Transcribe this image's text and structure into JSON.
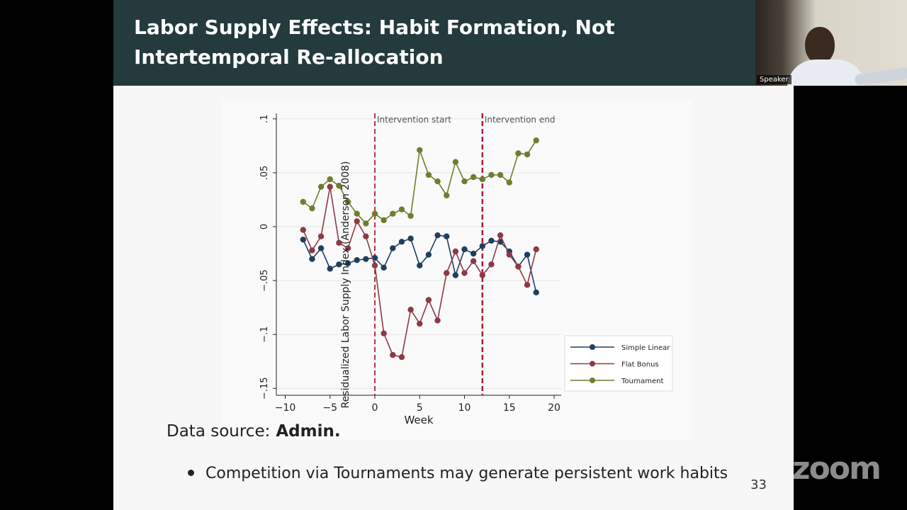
{
  "slide": {
    "title": "Labor Supply Effects: Habit Formation, Not Intertemporal Re-allocation",
    "data_source_label": "Data source:",
    "data_source_value": "Admin.",
    "bullet": "Competition via Tournaments may generate persistent work habits",
    "page_number": "33"
  },
  "video": {
    "speaker_label": "Speaker",
    "watermark": "zoom"
  },
  "chart_data": {
    "type": "line",
    "title": "",
    "xlabel": "Week",
    "ylabel": "Residualized Labor Supply Index (Anderson 2008)",
    "xlim": [
      -11,
      21
    ],
    "ylim": [
      -0.16,
      0.105
    ],
    "xticks": [
      -10,
      -5,
      0,
      5,
      10,
      15,
      20
    ],
    "xtick_labels": [
      "−10",
      "−5",
      "0",
      "5",
      "10",
      "15",
      "20"
    ],
    "yticks": [
      -0.15,
      -0.1,
      -0.05,
      0,
      0.05,
      0.1
    ],
    "ytick_labels": [
      "−.15",
      "−.1",
      "−.05",
      "0",
      ".05",
      ".1"
    ],
    "grid": true,
    "legend_position": "right",
    "annotations": [
      {
        "x": 0,
        "label": "Intervention start"
      },
      {
        "x": 12,
        "label": "Intervention end"
      }
    ],
    "x": [
      -8,
      -7,
      -6,
      -5,
      -4,
      -3,
      -2,
      -1,
      0,
      1,
      2,
      3,
      4,
      5,
      6,
      7,
      8,
      9,
      10,
      11,
      12,
      13,
      14,
      15,
      16,
      17,
      18
    ],
    "series": [
      {
        "name": "Simple Linear",
        "color": "#1f3f5e",
        "values": [
          -0.012,
          -0.03,
          -0.02,
          -0.039,
          -0.035,
          -0.034,
          -0.031,
          -0.03,
          -0.029,
          -0.038,
          -0.02,
          -0.014,
          -0.011,
          -0.036,
          -0.026,
          -0.008,
          -0.009,
          -0.045,
          -0.021,
          -0.025,
          -0.018,
          -0.013,
          -0.014,
          -0.023,
          -0.037,
          -0.026,
          -0.061
        ]
      },
      {
        "name": "Flat Bonus",
        "color": "#8c3a45",
        "values": [
          -0.003,
          -0.022,
          -0.009,
          0.037,
          -0.015,
          -0.02,
          0.005,
          -0.009,
          -0.036,
          -0.099,
          -0.119,
          -0.121,
          -0.077,
          -0.09,
          -0.068,
          -0.087,
          -0.043,
          -0.023,
          -0.043,
          -0.032,
          -0.045,
          -0.035,
          -0.008,
          -0.026,
          -0.037,
          -0.054,
          -0.021
        ]
      },
      {
        "name": "Tournament",
        "color": "#6b7f2f",
        "values": [
          0.023,
          0.017,
          0.037,
          0.044,
          0.038,
          0.023,
          0.012,
          0.003,
          0.012,
          0.006,
          0.012,
          0.016,
          0.01,
          0.071,
          0.048,
          0.042,
          0.029,
          0.06,
          0.042,
          0.046,
          0.044,
          0.048,
          0.048,
          0.041,
          0.068,
          0.067,
          0.08
        ]
      }
    ]
  }
}
